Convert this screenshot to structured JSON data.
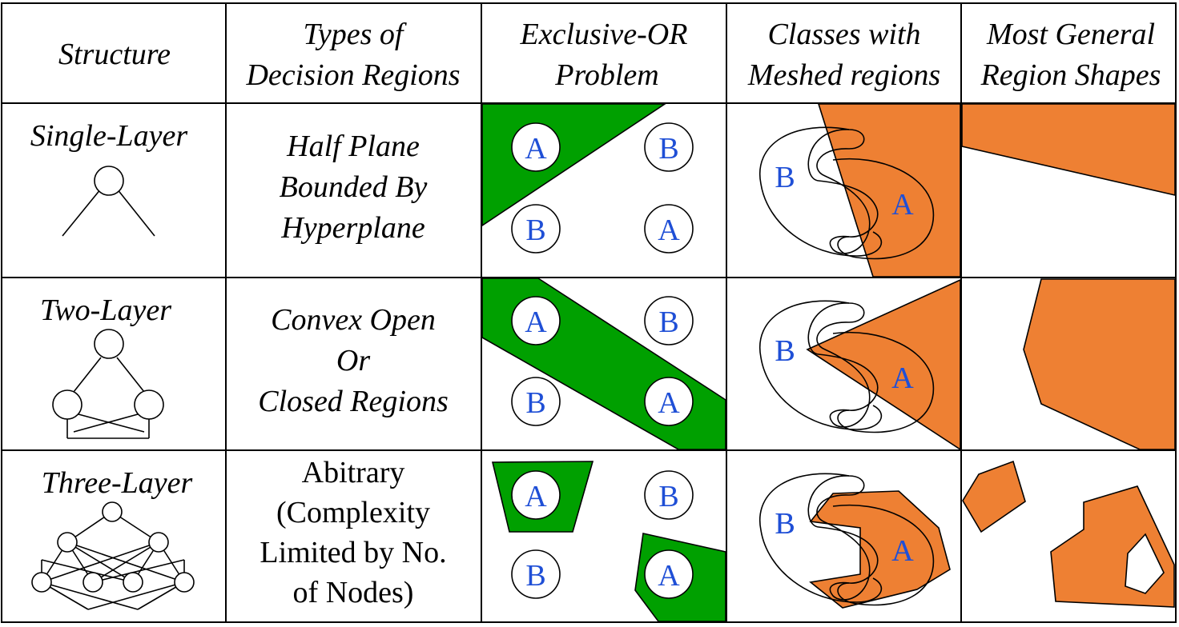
{
  "headers": [
    [
      "Structure"
    ],
    [
      "Types of",
      "Decision Regions"
    ],
    [
      "Exclusive-OR",
      "Problem"
    ],
    [
      "Classes with",
      "Meshed regions"
    ],
    [
      "Most General",
      "Region Shapes"
    ]
  ],
  "rows": [
    {
      "structure": "Single-Layer",
      "region_type": [
        "Half Plane",
        "Bounded By",
        "Hyperplane"
      ],
      "region_type_italic": true
    },
    {
      "structure": "Two-Layer",
      "region_type": [
        "Convex Open",
        "Or",
        "Closed Regions"
      ],
      "region_type_italic": true
    },
    {
      "structure": "Three-Layer",
      "region_type": [
        "Abitrary",
        "(Complexity",
        "Limited by No.",
        "of Nodes)"
      ],
      "region_type_italic": false
    }
  ],
  "class_labels": {
    "a": "A",
    "b": "B"
  },
  "colors": {
    "green": "#00a000",
    "orange": "#ee8033",
    "label_blue": "#1f4fd6",
    "line": "#000000"
  }
}
